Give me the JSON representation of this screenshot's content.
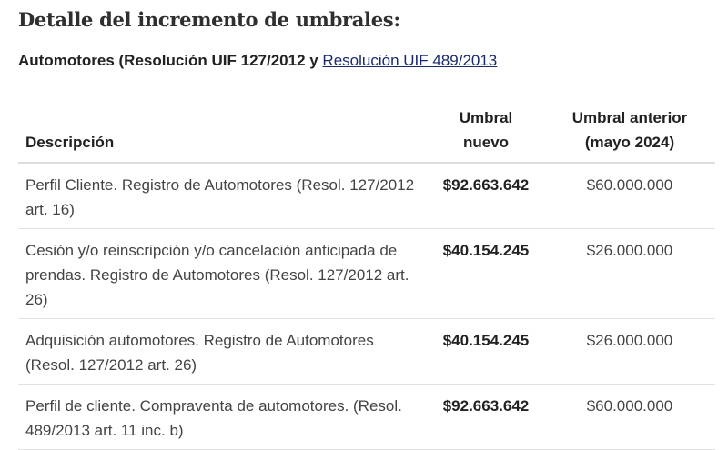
{
  "title": "Detalle del incremento de umbrales:",
  "subtitle": {
    "text": "Automotores (Resolución UIF 127/2012 y ",
    "link": "Resolución UIF 489/2013"
  },
  "table": {
    "headers": [
      "Descripción",
      "Umbral nuevo",
      "Umbral anterior (mayo 2024)"
    ],
    "rows": [
      {
        "descripcion": "Perfil Cliente. Registro de Automotores (Resol. 127/2012 art. 16)",
        "nuevo": "$92.663.642",
        "anterior": "$60.000.000"
      },
      {
        "descripcion": "Cesión y/o reinscripción y/o cancelación anticipada de prendas. Registro de Automotores (Resol. 127/2012 art. 26)",
        "nuevo": "$40.154.245",
        "anterior": "$26.000.000"
      },
      {
        "descripcion": "Adquisición automotores. Registro de Automotores (Resol. 127/2012 art. 26)",
        "nuevo": "$40.154.245",
        "anterior": "$26.000.000"
      },
      {
        "descripcion": "Perfil de cliente. Compraventa de automotores. (Resol. 489/2013 art. 11 inc. b)",
        "nuevo": "$92.663.642",
        "anterior": "$60.000.000"
      }
    ]
  }
}
